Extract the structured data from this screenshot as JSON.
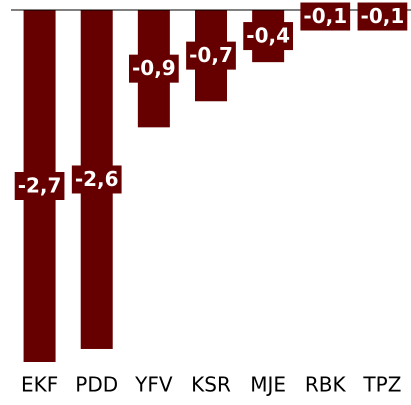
{
  "chart_data": {
    "type": "bar",
    "categories": [
      "EKF",
      "PDD",
      "YFV",
      "KSR",
      "MJE",
      "RBK",
      "TPZ"
    ],
    "values": [
      -2.7,
      -2.6,
      -0.9,
      -0.7,
      -0.4,
      -0.1,
      -0.1
    ],
    "value_labels": [
      "-2,7",
      "-2,6",
      "-0,9",
      "-0,7",
      "-0,4",
      "-0,1",
      "-0,1"
    ],
    "color": "#660000",
    "ylim": [
      -2.7,
      0
    ]
  }
}
